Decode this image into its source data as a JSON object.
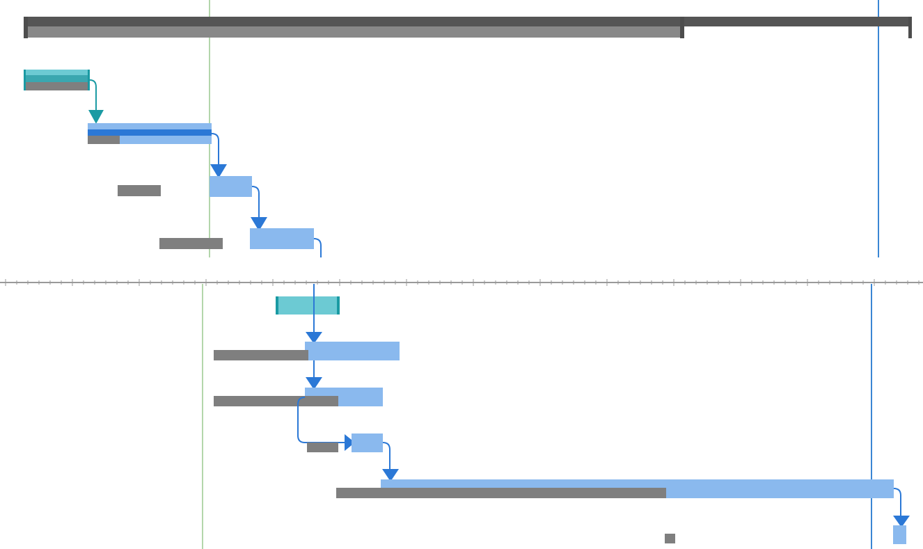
{
  "colors": {
    "background": "#ffffff",
    "summary_outline": "#4d4d4d",
    "summary_progress": "#888888",
    "summary_remaining": "#555555",
    "baseline": "#7f7f7f",
    "task": "#8ab9ee",
    "task_progress": "#2b78d6",
    "link": "#2b78d6",
    "milestone_task": "#6ccad3",
    "milestone_task_edge": "#1a9aa3",
    "milestone_task_progress": "#3aa7b0",
    "status_line": "#9ac98f",
    "deadline_line": "#3a86d4",
    "divider": "#999999"
  },
  "icons": {
    "link_arrow": "arrow-down-icon",
    "link_arrow_right": "arrow-right-icon"
  },
  "tasks": [
    {
      "id": "summary",
      "type": "summary",
      "progress_fraction": 0.74
    },
    {
      "id": "t1",
      "type": "teal-task",
      "progress_fraction": 1.0
    },
    {
      "id": "t2",
      "type": "task",
      "progress_fraction": 1.0
    },
    {
      "id": "t3",
      "type": "task",
      "progress_fraction": 0
    },
    {
      "id": "t4",
      "type": "task",
      "progress_fraction": 0
    },
    {
      "id": "t5",
      "type": "teal-task",
      "progress_fraction": 0
    },
    {
      "id": "t6",
      "type": "task",
      "progress_fraction": 0
    },
    {
      "id": "t7",
      "type": "task",
      "progress_fraction": 0
    },
    {
      "id": "t8",
      "type": "task",
      "progress_fraction": 0
    },
    {
      "id": "t9",
      "type": "task",
      "progress_fraction": 0
    },
    {
      "id": "t10",
      "type": "task",
      "progress_fraction": 0
    }
  ]
}
